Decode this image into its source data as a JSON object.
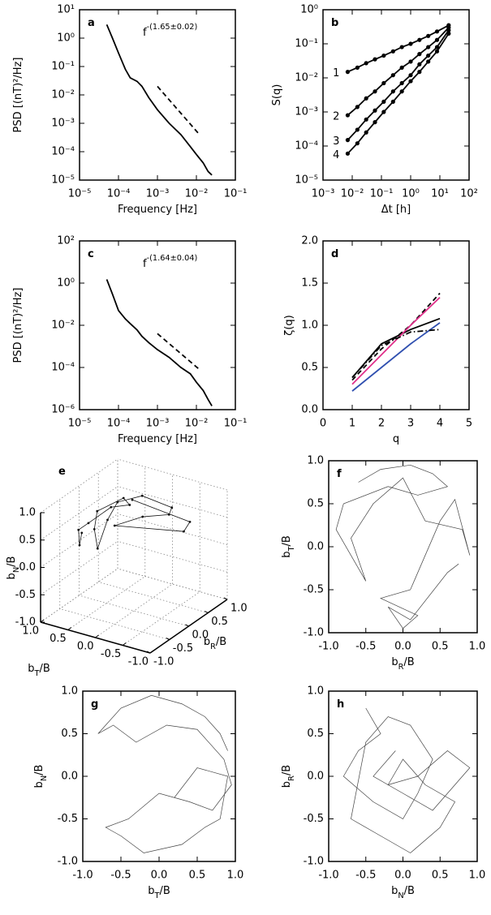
{
  "chart_data": [
    {
      "type": "line",
      "label": "a",
      "xscale": "log",
      "yscale": "log",
      "xlim": [
        1e-05,
        0.1
      ],
      "ylim": [
        1e-05,
        10
      ],
      "xticks": [
        {
          "value": 1e-05,
          "label": "10⁻⁵"
        },
        {
          "value": 0.0001,
          "label": "10⁻⁴"
        },
        {
          "value": 0.001,
          "label": "10⁻³"
        },
        {
          "value": 0.01,
          "label": "10⁻²"
        },
        {
          "value": 0.1,
          "label": "10⁻¹"
        }
      ],
      "yticks": [
        {
          "value": 1e-05,
          "label": "10⁻⁵"
        },
        {
          "value": 0.0001,
          "label": "10⁻⁴"
        },
        {
          "value": 0.001,
          "label": "10⁻³"
        },
        {
          "value": 0.01,
          "label": "10⁻²"
        },
        {
          "value": 0.1,
          "label": "10⁻¹"
        },
        {
          "value": 1,
          "label": "10⁰"
        },
        {
          "value": 10,
          "label": "10¹"
        }
      ],
      "xlabel": "Frequency [Hz]",
      "ylabel": "PSD [(nT)²/Hz]",
      "annotation": {
        "text": "f",
        "sup": "-(1.65±0.02)"
      },
      "series": [
        {
          "color": "#000000",
          "line_style": "solid",
          "x": [
            5e-05,
            7e-05,
            0.0001,
            0.00015,
            0.0002,
            0.0003,
            0.0004,
            0.0006,
            0.001,
            0.002,
            0.004,
            0.007,
            0.01,
            0.015,
            0.02,
            0.025
          ],
          "values": [
            3,
            1,
            0.3,
            0.08,
            0.04,
            0.03,
            0.02,
            0.008,
            0.003,
            0.001,
            0.0004,
            0.00015,
            8e-05,
            4e-05,
            2e-05,
            1.5e-05
          ]
        },
        {
          "color": "#000000",
          "line_style": "dashed",
          "x": [
            0.001,
            0.012
          ],
          "values": [
            0.02,
            0.0004
          ]
        }
      ]
    },
    {
      "type": "line",
      "label": "b",
      "xscale": "log",
      "yscale": "log",
      "xlim": [
        0.001,
        100
      ],
      "ylim": [
        1e-05,
        1
      ],
      "xticks": [
        {
          "value": 0.001,
          "label": "10⁻³"
        },
        {
          "value": 0.01,
          "label": "10⁻²"
        },
        {
          "value": 0.1,
          "label": "10⁻¹"
        },
        {
          "value": 1,
          "label": "10⁰"
        },
        {
          "value": 10,
          "label": "10¹"
        },
        {
          "value": 100,
          "label": "10²"
        }
      ],
      "yticks": [
        {
          "value": 1e-05,
          "label": "10⁻⁵"
        },
        {
          "value": 0.0001,
          "label": "10⁻⁴"
        },
        {
          "value": 0.001,
          "label": "10⁻³"
        },
        {
          "value": 0.01,
          "label": "10⁻²"
        },
        {
          "value": 0.1,
          "label": "10⁻¹"
        },
        {
          "value": 1,
          "label": "10⁰"
        }
      ],
      "xlabel": "Δt [h]",
      "ylabel": "S(q)",
      "x": [
        0.007,
        0.015,
        0.03,
        0.06,
        0.12,
        0.25,
        0.5,
        1,
        2,
        4,
        8,
        20
      ],
      "series": [
        {
          "name": "1",
          "color": "#000000",
          "line_style": "solid",
          "markers": true,
          "values": [
            0.015,
            0.02,
            0.027,
            0.035,
            0.045,
            0.06,
            0.08,
            0.1,
            0.13,
            0.17,
            0.23,
            0.35
          ]
        },
        {
          "name": "2",
          "color": "#000000",
          "line_style": "solid",
          "markers": true,
          "values": [
            0.0008,
            0.0014,
            0.0025,
            0.004,
            0.007,
            0.012,
            0.02,
            0.03,
            0.05,
            0.08,
            0.13,
            0.3
          ]
        },
        {
          "name": "3",
          "color": "#000000",
          "line_style": "solid",
          "markers": true,
          "values": [
            0.00015,
            0.0003,
            0.0006,
            0.0011,
            0.002,
            0.004,
            0.007,
            0.012,
            0.025,
            0.045,
            0.08,
            0.25
          ]
        },
        {
          "name": "4",
          "color": "#000000",
          "line_style": "solid",
          "markers": true,
          "values": [
            6e-05,
            0.00012,
            0.00025,
            0.0005,
            0.001,
            0.002,
            0.004,
            0.008,
            0.015,
            0.03,
            0.06,
            0.2
          ]
        }
      ]
    },
    {
      "type": "line",
      "label": "c",
      "xscale": "log",
      "yscale": "log",
      "xlim": [
        1e-05,
        0.1
      ],
      "ylim": [
        1e-06,
        100
      ],
      "xticks": [
        {
          "value": 1e-05,
          "label": "10⁻⁵"
        },
        {
          "value": 0.0001,
          "label": "10⁻⁴"
        },
        {
          "value": 0.001,
          "label": "10⁻³"
        },
        {
          "value": 0.01,
          "label": "10⁻²"
        },
        {
          "value": 0.1,
          "label": "10⁻¹"
        }
      ],
      "yticks": [
        {
          "value": 1e-06,
          "label": "10⁻⁶"
        },
        {
          "value": 0.0001,
          "label": "10⁻⁴"
        },
        {
          "value": 0.01,
          "label": "10⁻²"
        },
        {
          "value": 1,
          "label": "10⁰"
        },
        {
          "value": 100,
          "label": "10²"
        }
      ],
      "xlabel": "Frequency [Hz]",
      "ylabel": "PSD [(nT)²/Hz]",
      "annotation": {
        "text": "f",
        "sup": "-(1.64±0.04)"
      },
      "series": [
        {
          "color": "#000000",
          "line_style": "solid",
          "x": [
            5e-05,
            7e-05,
            0.0001,
            0.00015,
            0.0002,
            0.0003,
            0.0004,
            0.0006,
            0.001,
            0.002,
            0.004,
            0.007,
            0.01,
            0.015,
            0.02,
            0.025
          ],
          "values": [
            1.5,
            0.3,
            0.05,
            0.02,
            0.012,
            0.006,
            0.003,
            0.0015,
            0.0007,
            0.0003,
            0.0001,
            5e-05,
            2e-05,
            8e-06,
            3e-06,
            1.5e-06
          ]
        },
        {
          "color": "#000000",
          "line_style": "dashed",
          "x": [
            0.001,
            0.012
          ],
          "values": [
            0.004,
            8e-05
          ]
        }
      ]
    },
    {
      "type": "line",
      "label": "d",
      "xlim": [
        0,
        5
      ],
      "ylim": [
        0,
        2
      ],
      "xticks": [
        0,
        1,
        2,
        3,
        4,
        5
      ],
      "yticks": [
        {
          "value": 0,
          "label": "0.0"
        },
        0.5,
        {
          "value": 1,
          "label": "1.0"
        },
        1.5,
        {
          "value": 2,
          "label": "2.0"
        }
      ],
      "xlabel": "q",
      "ylabel": "ζ(q)",
      "x": [
        1,
        2,
        3,
        4
      ],
      "series": [
        {
          "color": "#000000",
          "line_style": "solid",
          "values": [
            0.38,
            0.78,
            0.95,
            1.08
          ]
        },
        {
          "color": "#000000",
          "line_style": "dashed",
          "values": [
            0.35,
            0.72,
            1.0,
            1.38
          ]
        },
        {
          "color": "#e0308a",
          "line_style": "solid",
          "values": [
            0.3,
            0.65,
            1.0,
            1.33
          ]
        },
        {
          "color": "#3050b0",
          "line_style": "solid",
          "values": [
            0.22,
            0.5,
            0.78,
            1.03
          ]
        },
        {
          "color": "#000000",
          "line_style": "dashdot",
          "values": [
            0.38,
            0.76,
            0.92,
            0.95
          ]
        }
      ]
    },
    {
      "type": "scatter3d",
      "label": "e",
      "grid": true,
      "xlim": [
        -1,
        1
      ],
      "ylim": [
        -1,
        1
      ],
      "zlim": [
        -1,
        1
      ],
      "xticks": [
        {
          "value": -1,
          "label": "-1.0"
        },
        -0.5,
        {
          "value": 0,
          "label": "0.0"
        },
        0.5,
        {
          "value": 1,
          "label": "1.0"
        }
      ],
      "yticks": [
        {
          "value": -1,
          "label": "-1.0"
        },
        -0.5,
        {
          "value": 0,
          "label": "0.0"
        },
        0.5,
        {
          "value": 1,
          "label": "1.0"
        }
      ],
      "zticks": [
        {
          "value": -1,
          "label": "-1.0"
        },
        -0.5,
        {
          "value": 0,
          "label": "0.0"
        },
        0.5,
        {
          "value": 1,
          "label": "1.0"
        }
      ],
      "xlabel": {
        "text": "b",
        "sub": "R",
        "after": "/B"
      },
      "ylabel": {
        "text": "b",
        "sub": "T",
        "after": "/B"
      },
      "zlabel": {
        "text": "b",
        "sub": "N",
        "after": "/B"
      },
      "series": [
        {
          "color": "#111111",
          "x": [
            -0.5,
            -0.7,
            -0.3,
            0.1,
            0.4,
            0.6,
            0.3,
            -0.1,
            -0.6,
            -0.8,
            -0.4,
            0.0,
            0.5,
            0.7,
            0.2,
            -0.2,
            -0.5,
            0.3,
            0.6,
            0.1
          ],
          "y": [
            0.6,
            0.5,
            0.8,
            0.9,
            0.7,
            0.5,
            0.4,
            0.6,
            0.3,
            0.1,
            0.2,
            0.3,
            0.2,
            -0.2,
            -0.5,
            -0.3,
            0.0,
            -0.7,
            -0.6,
            0.1
          ],
          "z": [
            0.5,
            0.4,
            0.4,
            0.3,
            0.5,
            0.5,
            0.8,
            0.7,
            0.7,
            0.5,
            0.8,
            0.9,
            0.8,
            0.6,
            0.8,
            0.9,
            0.8,
            0.5,
            0.5,
            0.95
          ]
        }
      ]
    },
    {
      "type": "line",
      "label": "f",
      "xlim": [
        -1,
        1
      ],
      "ylim": [
        -1,
        1
      ],
      "xticks": [
        {
          "value": -1,
          "label": "-1.0"
        },
        -0.5,
        {
          "value": 0,
          "label": "0.0"
        },
        0.5,
        {
          "value": 1,
          "label": "1.0"
        }
      ],
      "yticks": [
        {
          "value": -1,
          "label": "-1.0"
        },
        -0.5,
        {
          "value": 0,
          "label": "0.0"
        },
        0.5,
        {
          "value": 1,
          "label": "1.0"
        }
      ],
      "xlabel": {
        "text": "b",
        "sub": "R",
        "after": "/B"
      },
      "ylabel": {
        "text": "b",
        "sub": "T",
        "after": "/B"
      },
      "series": [
        {
          "color": "#444444",
          "line_style": "thin",
          "x": [
            -0.6,
            -0.3,
            0.1,
            0.4,
            0.6,
            0.2,
            -0.2,
            -0.8,
            -0.9,
            -0.5,
            -0.7,
            -0.4,
            0.0,
            0.3,
            0.8,
            0.9,
            0.7,
            0.5,
            0.1,
            -0.3,
            0.2,
            0.0,
            -0.2,
            0.1,
            0.6,
            0.75
          ],
          "values": [
            0.75,
            0.9,
            0.95,
            0.85,
            0.7,
            0.6,
            0.7,
            0.5,
            0.2,
            -0.4,
            0.1,
            0.5,
            0.8,
            0.3,
            0.2,
            -0.1,
            0.55,
            0.3,
            -0.5,
            -0.6,
            -0.8,
            -0.95,
            -0.7,
            -0.85,
            -0.3,
            -0.2
          ]
        }
      ]
    },
    {
      "type": "line",
      "label": "g",
      "xlim": [
        -1,
        1
      ],
      "ylim": [
        -1,
        1
      ],
      "xticks": [
        {
          "value": -1,
          "label": "-1.0"
        },
        -0.5,
        {
          "value": 0,
          "label": "0.0"
        },
        0.5,
        {
          "value": 1,
          "label": "1.0"
        }
      ],
      "yticks": [
        {
          "value": -1,
          "label": "-1.0"
        },
        -0.5,
        {
          "value": 0,
          "label": "0.0"
        },
        0.5,
        {
          "value": 1,
          "label": "1.0"
        }
      ],
      "xlabel": {
        "text": "b",
        "sub": "T",
        "after": "/B"
      },
      "ylabel": {
        "text": "b",
        "sub": "N",
        "after": "/B"
      },
      "series": [
        {
          "color": "#444444",
          "line_style": "thin",
          "x": [
            0.9,
            0.8,
            0.6,
            0.3,
            -0.1,
            -0.5,
            -0.8,
            -0.6,
            -0.3,
            0.1,
            0.5,
            0.85,
            0.95,
            0.7,
            0.4,
            0.0,
            -0.4,
            -0.7,
            -0.5,
            -0.2,
            0.3,
            0.6,
            0.8,
            0.9,
            0.5,
            0.2
          ],
          "values": [
            0.3,
            0.5,
            0.7,
            0.85,
            0.95,
            0.8,
            0.5,
            0.6,
            0.4,
            0.6,
            0.55,
            0.2,
            -0.1,
            -0.4,
            -0.3,
            -0.2,
            -0.5,
            -0.6,
            -0.7,
            -0.9,
            -0.8,
            -0.6,
            -0.5,
            0.0,
            0.1,
            -0.25
          ]
        }
      ]
    },
    {
      "type": "line",
      "label": "h",
      "xlim": [
        -1,
        1
      ],
      "ylim": [
        -1,
        1
      ],
      "xticks": [
        {
          "value": -1,
          "label": "-1.0"
        },
        -0.5,
        {
          "value": 0,
          "label": "0.0"
        },
        0.5,
        {
          "value": 1,
          "label": "1.0"
        }
      ],
      "yticks": [
        {
          "value": -1,
          "label": "-1.0"
        },
        -0.5,
        {
          "value": 0,
          "label": "0.0"
        },
        0.5,
        {
          "value": 1,
          "label": "1.0"
        }
      ],
      "xlabel": {
        "text": "b",
        "sub": "N",
        "after": "/B"
      },
      "ylabel": {
        "text": "b",
        "sub": "R",
        "after": "/B"
      },
      "series": [
        {
          "color": "#444444",
          "line_style": "thin",
          "x": [
            -0.5,
            -0.3,
            -0.6,
            -0.8,
            -0.4,
            0.0,
            0.2,
            0.4,
            0.1,
            -0.2,
            -0.5,
            -0.7,
            -0.3,
            0.1,
            0.5,
            0.7,
            0.3,
            0.0,
            -0.2,
            0.2,
            0.6,
            0.9,
            0.4,
            0.0,
            -0.4,
            -0.1
          ],
          "values": [
            0.8,
            0.5,
            0.3,
            0.0,
            -0.3,
            -0.5,
            -0.2,
            0.2,
            0.6,
            0.7,
            0.4,
            -0.5,
            -0.7,
            -0.9,
            -0.6,
            -0.3,
            -0.1,
            0.2,
            -0.1,
            0.0,
            0.3,
            0.1,
            -0.4,
            -0.2,
            0.0,
            0.3
          ]
        }
      ]
    }
  ]
}
